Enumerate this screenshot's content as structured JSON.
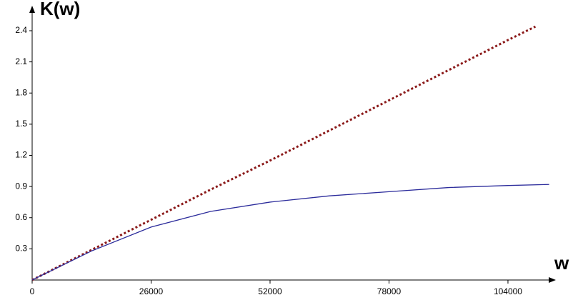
{
  "chart_data": {
    "type": "line",
    "y_label": "K(w)",
    "x_label": "w",
    "xlim": [
      0,
      114000
    ],
    "ylim": [
      0,
      2.62
    ],
    "xticks": [
      0,
      26000,
      52000,
      78000,
      104000
    ],
    "yticks": [
      0.3,
      0.6,
      0.9,
      1.2,
      1.5,
      1.8,
      2.1,
      2.4
    ],
    "series": [
      {
        "color": "#8b1a1a",
        "dash": true,
        "x": [
          0,
          13000,
          26000,
          39000,
          52000,
          65000,
          78000,
          91000,
          104000,
          110000
        ],
        "values": [
          0,
          0.29,
          0.58,
          0.87,
          1.15,
          1.44,
          1.73,
          2.02,
          2.31,
          2.44
        ]
      },
      {
        "color": "#2b2b9b",
        "dash": false,
        "x": [
          0,
          13000,
          26000,
          39000,
          52000,
          65000,
          78000,
          91000,
          104000,
          113000
        ],
        "values": [
          0,
          0.28,
          0.51,
          0.66,
          0.75,
          0.81,
          0.85,
          0.89,
          0.91,
          0.92
        ]
      }
    ]
  }
}
